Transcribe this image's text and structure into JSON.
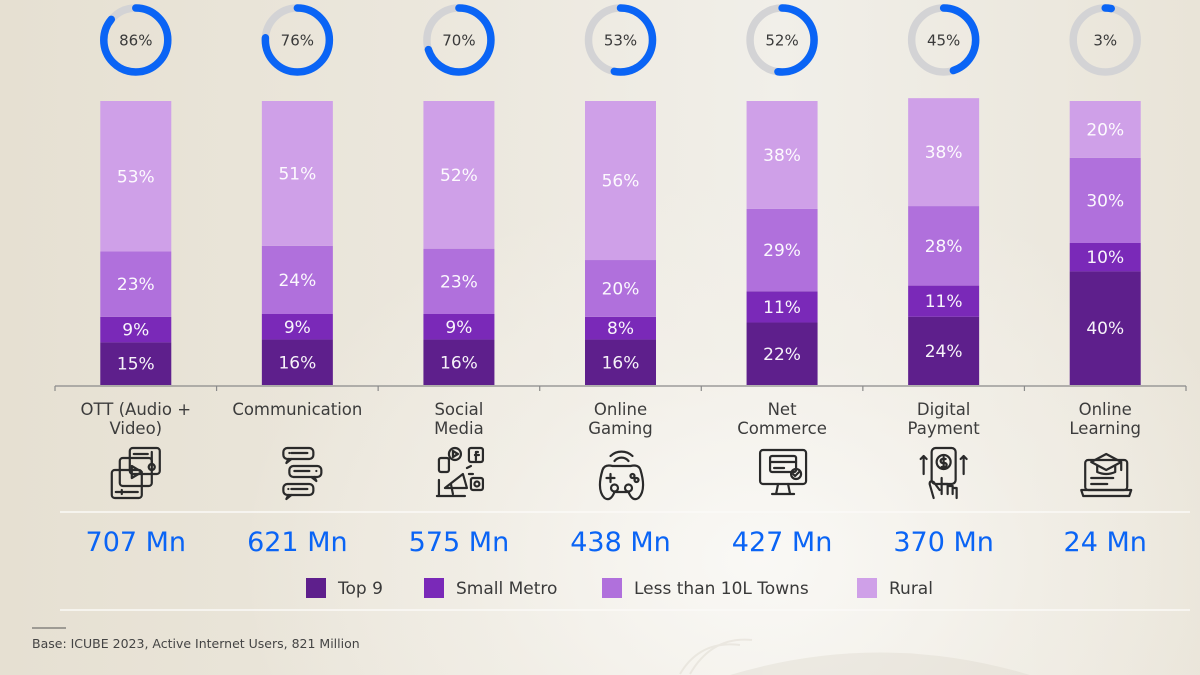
{
  "chart_data": {
    "type": "bar",
    "stacked": true,
    "categories": [
      "OTT (Audio + Video)",
      "Communication",
      "Social Media",
      "Online Gaming",
      "Net Commerce",
      "Digital Payment",
      "Online Learning"
    ],
    "category_label_lines": [
      [
        "OTT (Audio +",
        "Video)"
      ],
      [
        "Communication"
      ],
      [
        "Social",
        "Media"
      ],
      [
        "Online",
        "Gaming"
      ],
      [
        "Net",
        "Commerce"
      ],
      [
        "Digital",
        "Payment"
      ],
      [
        "Online",
        "Learning"
      ]
    ],
    "category_icons": [
      "video-player-icon",
      "chat-bubbles-icon",
      "social-media-megaphone-icon",
      "gamepad-icon",
      "online-shopping-monitor-icon",
      "mobile-payment-icon",
      "online-learning-laptop-icon"
    ],
    "series": [
      {
        "name": "Top 9",
        "color": "#5e1f8c",
        "values": [
          15,
          16,
          16,
          16,
          22,
          24,
          40
        ]
      },
      {
        "name": "Small Metro",
        "color": "#7a29b8",
        "values": [
          9,
          9,
          9,
          8,
          11,
          11,
          10
        ]
      },
      {
        "name": "Less than 10L Towns",
        "color": "#b070dc",
        "values": [
          23,
          24,
          23,
          20,
          29,
          28,
          30
        ]
      },
      {
        "name": "Rural",
        "color": "#cfa0e8",
        "values": [
          53,
          51,
          52,
          56,
          38,
          38,
          20
        ]
      }
    ],
    "value_suffix": "%",
    "penetration": {
      "values": [
        86,
        76,
        70,
        53,
        52,
        45,
        3
      ],
      "suffix": "%",
      "fill_color": "#0a64f5",
      "track_color": "#d3d3d5"
    },
    "user_counts": [
      "707 Mn",
      "621 Mn",
      "575 Mn",
      "438 Mn",
      "427 Mn",
      "370 Mn",
      "24 Mn"
    ],
    "user_count_color": "#0a64f5",
    "ylim": [
      0,
      100
    ],
    "title": "",
    "xlabel": "",
    "ylabel": "",
    "grid": false,
    "legend_position": "bottom-center"
  },
  "footnote": "Base: ICUBE 2023, Active Internet Users, 821 Million"
}
